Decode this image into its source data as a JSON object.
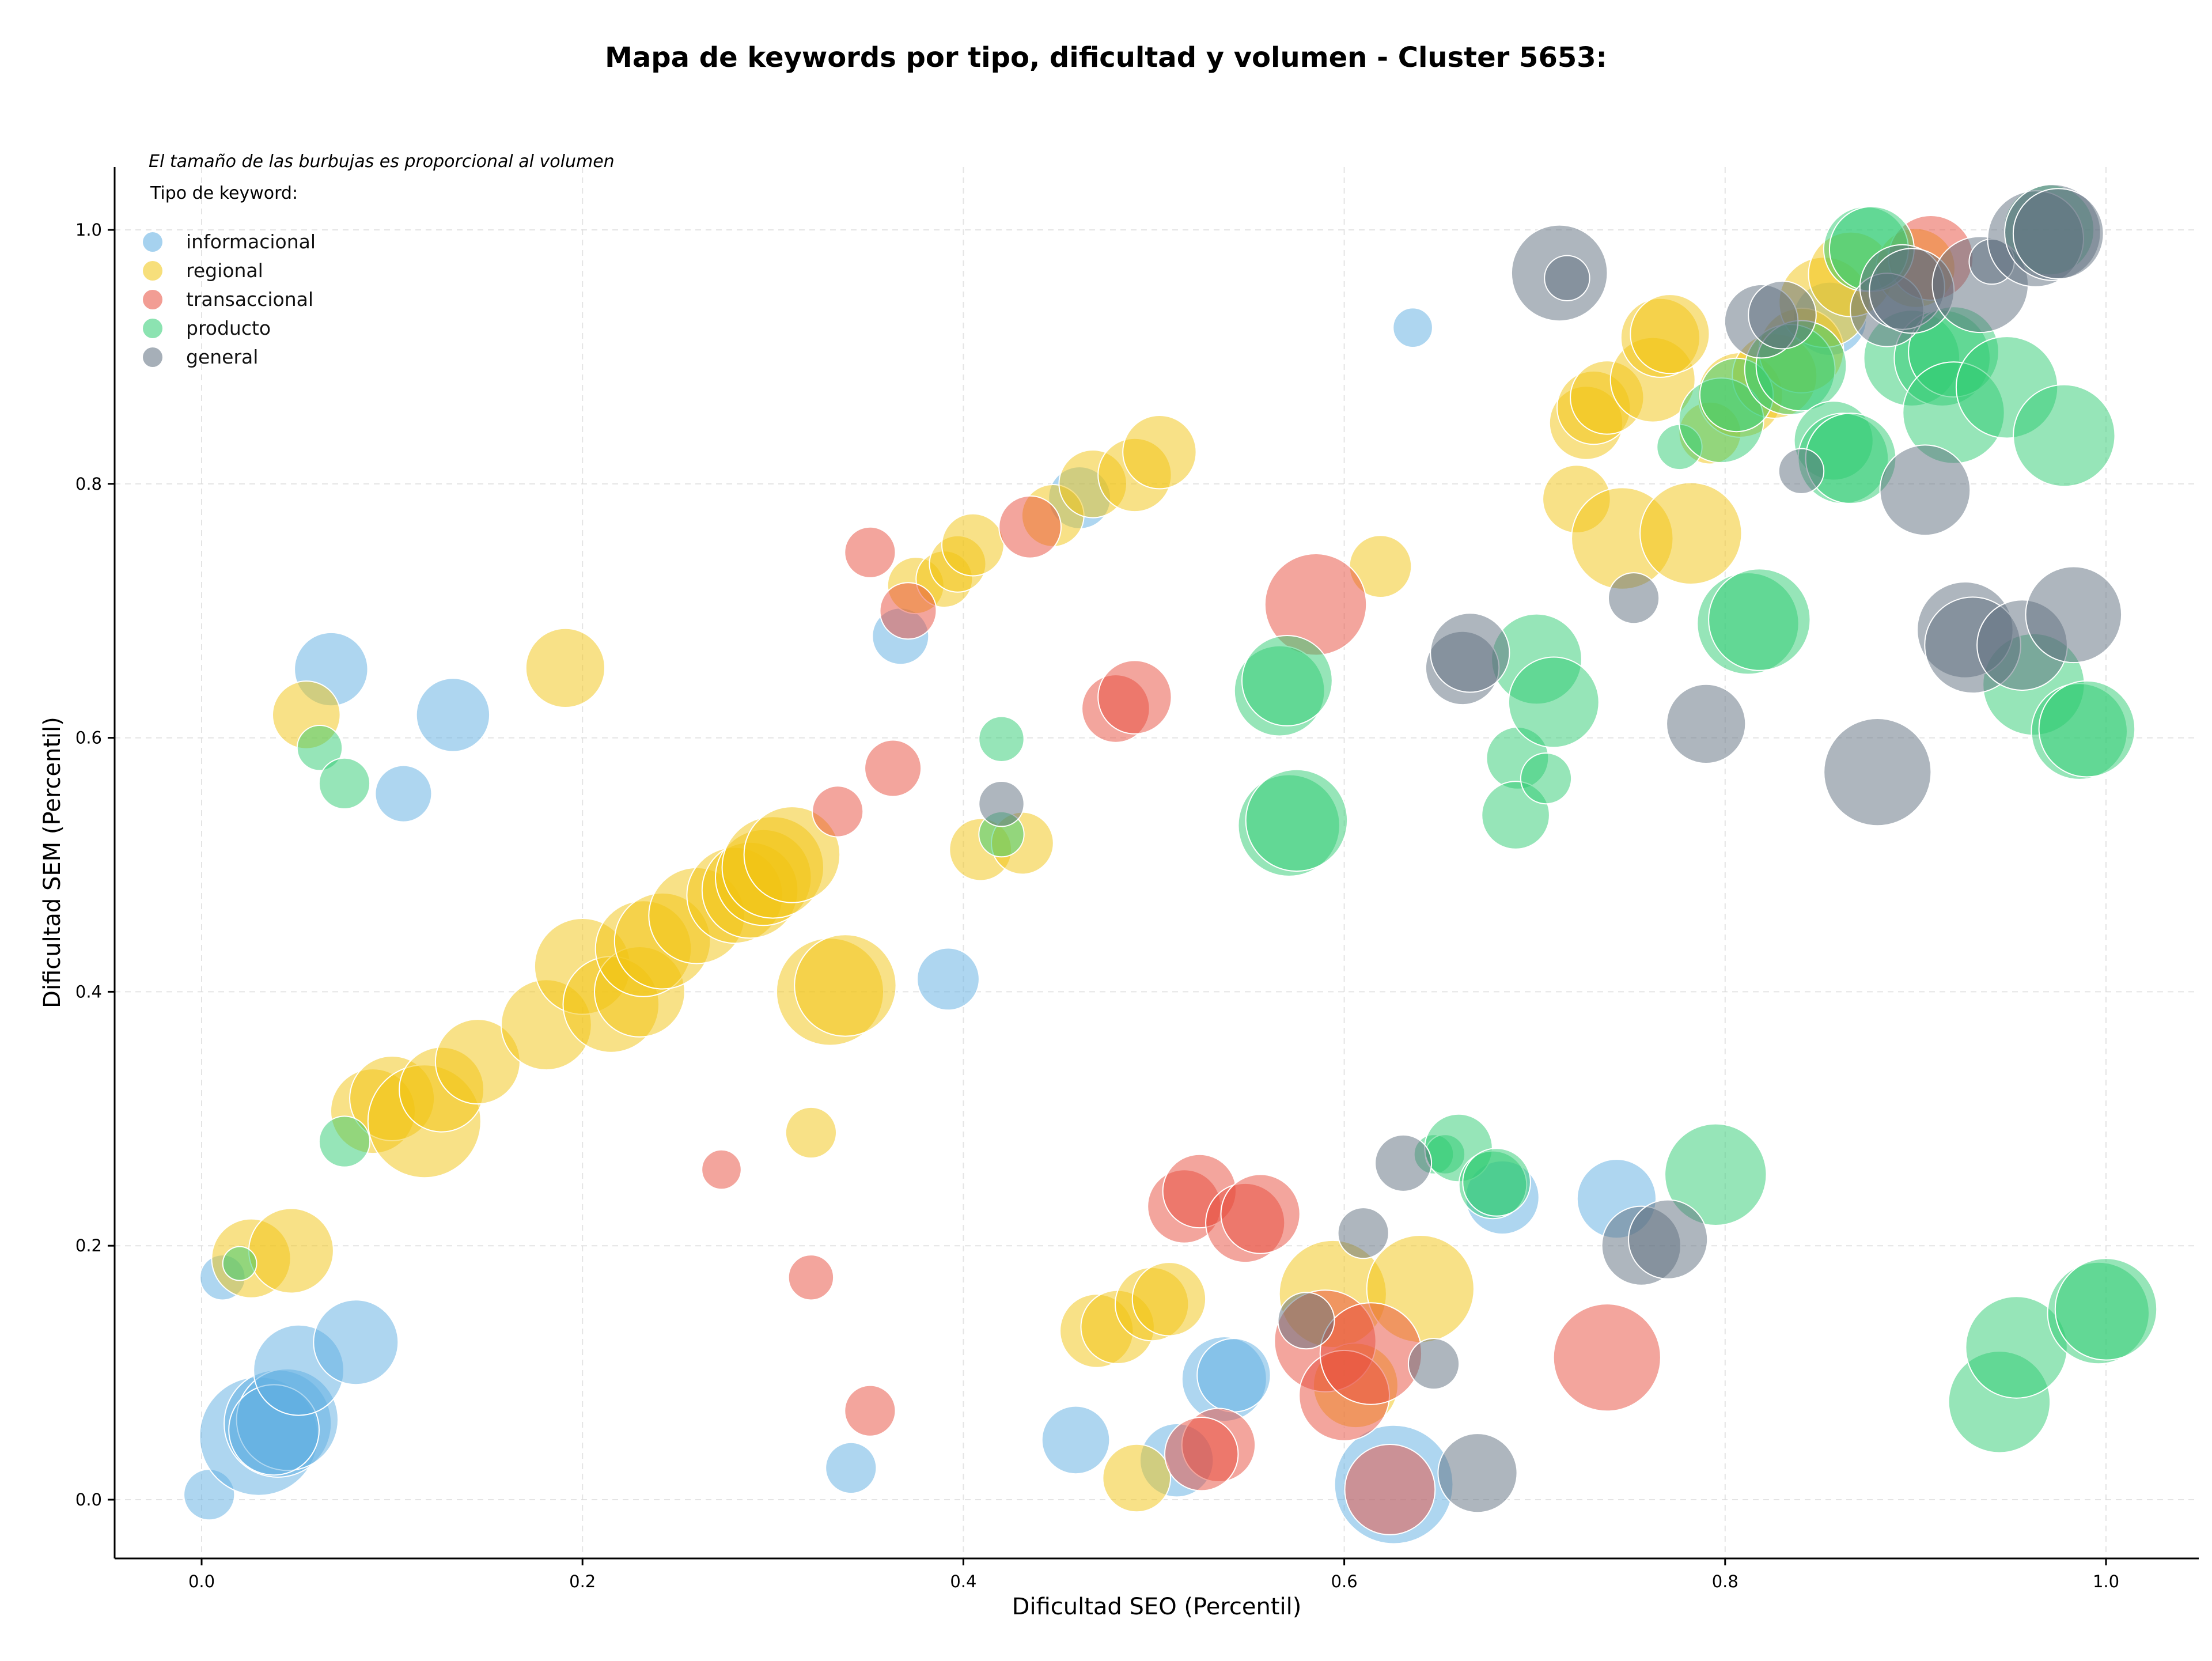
{
  "chart_data": {
    "type": "scatter",
    "title": "Mapa de keywords por tipo, dificultad y volumen - Cluster 5653:",
    "xlabel": "Dificultad SEO (Percentil)",
    "ylabel": "Dificultad SEM (Percentil)",
    "xlim": [
      -0.045,
      1.05
    ],
    "ylim": [
      -0.045,
      1.05
    ],
    "x_ticks": [
      "0.0",
      "0.2",
      "0.4",
      "0.6",
      "0.8",
      "1.0"
    ],
    "y_ticks": [
      "0.0",
      "0.2",
      "0.4",
      "0.6",
      "0.8",
      "1.0"
    ],
    "x_tick_values": [
      0,
      0.2,
      0.4,
      0.6,
      0.8,
      1.0
    ],
    "y_tick_values": [
      0,
      0.2,
      0.4,
      0.6,
      0.8,
      1.0
    ],
    "grid": true,
    "note": "El tamaño de las burbujas es proporcional al volumen",
    "legend_title": "Tipo de keyword:",
    "legend_position": "top-left",
    "series": [
      {
        "name": "informacional",
        "color": "#5dade2",
        "points": [
          [
            0.004,
            0.004,
            18
          ],
          [
            0.011,
            0.175,
            16
          ],
          [
            0.03,
            0.05,
            42
          ],
          [
            0.04,
            0.06,
            38
          ],
          [
            0.045,
            0.063,
            36
          ],
          [
            0.038,
            0.055,
            32
          ],
          [
            0.051,
            0.102,
            32
          ],
          [
            0.081,
            0.124,
            30
          ],
          [
            0.068,
            0.654,
            26
          ],
          [
            0.106,
            0.556,
            20
          ],
          [
            0.132,
            0.618,
            26
          ],
          [
            0.341,
            0.025,
            18
          ],
          [
            0.367,
            0.68,
            20
          ],
          [
            0.392,
            0.41,
            22
          ],
          [
            0.459,
            0.047,
            24
          ],
          [
            0.512,
            0.031,
            26
          ],
          [
            0.537,
            0.095,
            30
          ],
          [
            0.542,
            0.098,
            26
          ],
          [
            0.626,
            0.012,
            42
          ],
          [
            0.636,
            0.923,
            14
          ],
          [
            0.683,
            0.238,
            26
          ],
          [
            0.743,
            0.237,
            28
          ],
          [
            0.461,
            0.789,
            22
          ],
          [
            0.855,
            0.93,
            26
          ]
        ]
      },
      {
        "name": "regional",
        "color": "#f1c40f",
        "points": [
          [
            0.026,
            0.19,
            28
          ],
          [
            0.047,
            0.196,
            30
          ],
          [
            0.055,
            0.618,
            24
          ],
          [
            0.09,
            0.306,
            30
          ],
          [
            0.1,
            0.316,
            30
          ],
          [
            0.117,
            0.298,
            40
          ],
          [
            0.126,
            0.323,
            30
          ],
          [
            0.145,
            0.345,
            30
          ],
          [
            0.181,
            0.374,
            32
          ],
          [
            0.191,
            0.655,
            28
          ],
          [
            0.2,
            0.42,
            34
          ],
          [
            0.215,
            0.39,
            34
          ],
          [
            0.23,
            0.4,
            32
          ],
          [
            0.232,
            0.434,
            34
          ],
          [
            0.242,
            0.44,
            34
          ],
          [
            0.26,
            0.46,
            34
          ],
          [
            0.28,
            0.476,
            34
          ],
          [
            0.288,
            0.48,
            34
          ],
          [
            0.295,
            0.49,
            34
          ],
          [
            0.3,
            0.498,
            36
          ],
          [
            0.31,
            0.508,
            34
          ],
          [
            0.33,
            0.4,
            38
          ],
          [
            0.338,
            0.405,
            36
          ],
          [
            0.32,
            0.289,
            18
          ],
          [
            0.375,
            0.72,
            20
          ],
          [
            0.39,
            0.725,
            20
          ],
          [
            0.397,
            0.737,
            20
          ],
          [
            0.405,
            0.752,
            22
          ],
          [
            0.409,
            0.512,
            22
          ],
          [
            0.431,
            0.517,
            22
          ],
          [
            0.447,
            0.775,
            22
          ],
          [
            0.468,
            0.8,
            24
          ],
          [
            0.49,
            0.807,
            26
          ],
          [
            0.503,
            0.825,
            26
          ],
          [
            0.47,
            0.133,
            26
          ],
          [
            0.481,
            0.136,
            26
          ],
          [
            0.491,
            0.017,
            24
          ],
          [
            0.499,
            0.154,
            26
          ],
          [
            0.508,
            0.158,
            26
          ],
          [
            0.594,
            0.162,
            38
          ],
          [
            0.606,
            0.09,
            30
          ],
          [
            0.619,
            0.735,
            22
          ],
          [
            0.64,
            0.166,
            38
          ],
          [
            0.722,
            0.788,
            24
          ],
          [
            0.727,
            0.848,
            26
          ],
          [
            0.731,
            0.86,
            26
          ],
          [
            0.738,
            0.868,
            26
          ],
          [
            0.746,
            0.757,
            36
          ],
          [
            0.762,
            0.882,
            30
          ],
          [
            0.766,
            0.915,
            28
          ],
          [
            0.771,
            0.918,
            28
          ],
          [
            0.782,
            0.761,
            36
          ],
          [
            0.792,
            0.84,
            22
          ],
          [
            0.808,
            0.87,
            30
          ],
          [
            0.826,
            0.885,
            30
          ],
          [
            0.84,
            0.905,
            30
          ],
          [
            0.852,
            0.943,
            32
          ],
          [
            0.866,
            0.965,
            30
          ],
          [
            0.9,
            0.97,
            28
          ]
        ]
      },
      {
        "name": "transaccional",
        "color": "#e74c3c",
        "points": [
          [
            0.273,
            0.26,
            14
          ],
          [
            0.32,
            0.175,
            16
          ],
          [
            0.334,
            0.542,
            18
          ],
          [
            0.351,
            0.746,
            18
          ],
          [
            0.351,
            0.07,
            18
          ],
          [
            0.363,
            0.576,
            20
          ],
          [
            0.371,
            0.7,
            20
          ],
          [
            0.435,
            0.766,
            22
          ],
          [
            0.48,
            0.623,
            24
          ],
          [
            0.49,
            0.632,
            26
          ],
          [
            0.516,
            0.231,
            26
          ],
          [
            0.524,
            0.243,
            26
          ],
          [
            0.534,
            0.043,
            26
          ],
          [
            0.525,
            0.036,
            26
          ],
          [
            0.548,
            0.218,
            28
          ],
          [
            0.556,
            0.225,
            28
          ],
          [
            0.585,
            0.705,
            36
          ],
          [
            0.59,
            0.125,
            36
          ],
          [
            0.6,
            0.082,
            32
          ],
          [
            0.614,
            0.115,
            36
          ],
          [
            0.624,
            0.008,
            32
          ],
          [
            0.738,
            0.112,
            38
          ],
          [
            0.908,
            0.978,
            30
          ]
        ]
      },
      {
        "name": "producto",
        "color": "#2ecc71",
        "points": [
          [
            0.02,
            0.186,
            12
          ],
          [
            0.062,
            0.592,
            16
          ],
          [
            0.075,
            0.564,
            18
          ],
          [
            0.075,
            0.282,
            18
          ],
          [
            0.42,
            0.599,
            16
          ],
          [
            0.42,
            0.524,
            16
          ],
          [
            0.566,
            0.637,
            32
          ],
          [
            0.57,
            0.645,
            32
          ],
          [
            0.571,
            0.531,
            36
          ],
          [
            0.575,
            0.535,
            36
          ],
          [
            0.647,
            0.272,
            14
          ],
          [
            0.653,
            0.272,
            14
          ],
          [
            0.66,
            0.277,
            24
          ],
          [
            0.678,
            0.248,
            24
          ],
          [
            0.68,
            0.25,
            24
          ],
          [
            0.691,
            0.584,
            22
          ],
          [
            0.69,
            0.539,
            24
          ],
          [
            0.701,
            0.662,
            32
          ],
          [
            0.706,
            0.568,
            18
          ],
          [
            0.71,
            0.628,
            32
          ],
          [
            0.776,
            0.829,
            16
          ],
          [
            0.795,
            0.256,
            36
          ],
          [
            0.798,
            0.85,
            30
          ],
          [
            0.806,
            0.87,
            26
          ],
          [
            0.812,
            0.69,
            36
          ],
          [
            0.818,
            0.693,
            36
          ],
          [
            0.834,
            0.89,
            32
          ],
          [
            0.84,
            0.893,
            32
          ],
          [
            0.857,
            0.834,
            28
          ],
          [
            0.862,
            0.82,
            32
          ],
          [
            0.866,
            0.82,
            32
          ],
          [
            0.874,
            0.985,
            30
          ],
          [
            0.877,
            0.985,
            30
          ],
          [
            0.898,
            0.899,
            34
          ],
          [
            0.914,
            0.899,
            34
          ],
          [
            0.92,
            0.904,
            32
          ],
          [
            0.92,
            0.856,
            36
          ],
          [
            0.948,
            0.876,
            36
          ],
          [
            0.944,
            0.077,
            36
          ],
          [
            0.953,
            0.12,
            36
          ],
          [
            0.962,
            0.642,
            36
          ],
          [
            0.97,
            1.0,
            32
          ],
          [
            0.978,
            0.838,
            36
          ],
          [
            0.986,
            0.605,
            34
          ],
          [
            0.99,
            0.607,
            34
          ],
          [
            0.996,
            0.147,
            36
          ],
          [
            1.0,
            0.15,
            36
          ]
        ]
      },
      {
        "name": "general",
        "color": "#5d6d7e",
        "points": [
          [
            0.42,
            0.548,
            16
          ],
          [
            0.58,
            0.141,
            20
          ],
          [
            0.61,
            0.21,
            18
          ],
          [
            0.631,
            0.265,
            20
          ],
          [
            0.647,
            0.107,
            18
          ],
          [
            0.662,
            0.655,
            26
          ],
          [
            0.666,
            0.667,
            28
          ],
          [
            0.67,
            0.021,
            28
          ],
          [
            0.713,
            0.966,
            34
          ],
          [
            0.717,
            0.962,
            16
          ],
          [
            0.752,
            0.71,
            18
          ],
          [
            0.756,
            0.2,
            28
          ],
          [
            0.77,
            0.205,
            28
          ],
          [
            0.79,
            0.611,
            28
          ],
          [
            0.819,
            0.928,
            26
          ],
          [
            0.83,
            0.933,
            24
          ],
          [
            0.84,
            0.81,
            16
          ],
          [
            0.88,
            0.573,
            38
          ],
          [
            0.885,
            0.937,
            26
          ],
          [
            0.893,
            0.955,
            30
          ],
          [
            0.898,
            0.952,
            30
          ],
          [
            0.905,
            0.795,
            32
          ],
          [
            0.926,
            0.685,
            34
          ],
          [
            0.93,
            0.673,
            34
          ],
          [
            0.934,
            0.957,
            34
          ],
          [
            0.94,
            0.975,
            16
          ],
          [
            0.956,
            0.673,
            32
          ],
          [
            0.963,
            0.993,
            34
          ],
          [
            0.972,
            0.998,
            34
          ],
          [
            0.975,
            0.997,
            32
          ],
          [
            0.983,
            0.697,
            34
          ]
        ]
      }
    ]
  }
}
